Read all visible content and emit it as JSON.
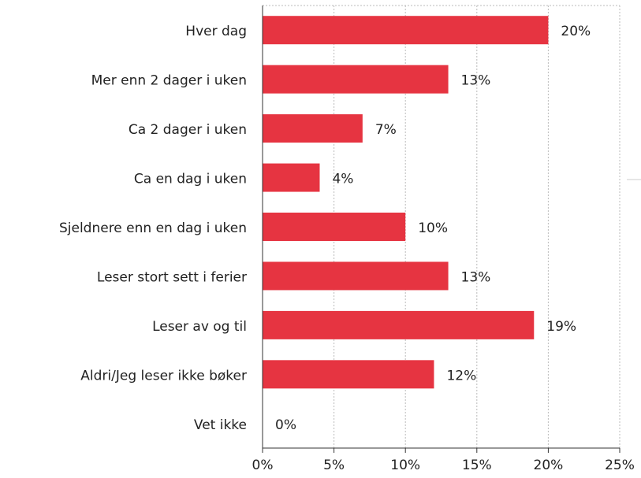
{
  "chart_data": {
    "type": "barh",
    "categories": [
      "Hver dag",
      "Mer enn 2 dager i uken",
      "Ca 2 dager i uken",
      "Ca en dag i uken",
      "Sjeldnere enn en dag i uken",
      "Leser stort sett i ferier",
      "Leser av og til",
      "Aldri/Jeg leser ikke bøker",
      "Vet ikke"
    ],
    "values": [
      20,
      13,
      7,
      4,
      10,
      13,
      19,
      12,
      0
    ],
    "value_labels": [
      "20%",
      "13%",
      "7%",
      "4%",
      "10%",
      "13%",
      "19%",
      "12%",
      "0%"
    ],
    "color": "#e63441",
    "xlim": [
      0,
      25
    ],
    "xticks": [
      {
        "value": 0,
        "label": "0%"
      },
      {
        "value": 5,
        "label": "5%"
      },
      {
        "value": 10,
        "label": "10%"
      },
      {
        "value": 15,
        "label": "15%"
      },
      {
        "value": 20,
        "label": "20%"
      },
      {
        "value": 25,
        "label": "25%"
      }
    ],
    "grid": true
  }
}
